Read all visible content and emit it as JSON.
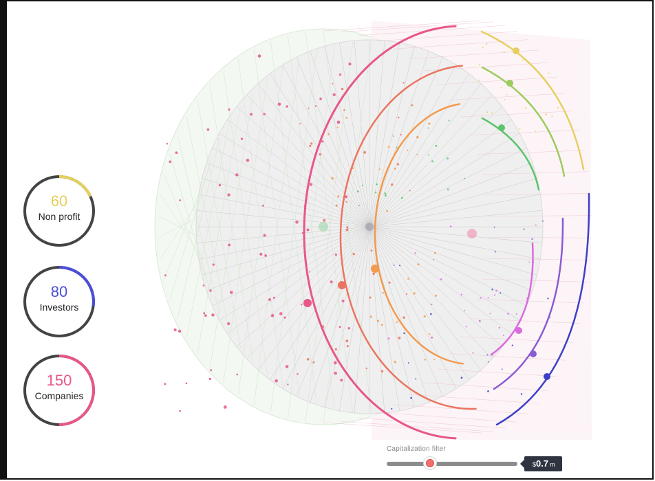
{
  "stats": [
    {
      "id": "nonprofit",
      "value": "60",
      "label": "Non profit",
      "color": "#e3cf5c",
      "fraction": 0.18
    },
    {
      "id": "investors",
      "value": "80",
      "label": "Investors",
      "color": "#4a4ed8",
      "fraction": 0.27
    },
    {
      "id": "companies",
      "value": "150",
      "label": "Companies",
      "color": "#e8568a",
      "fraction": 0.5
    }
  ],
  "slider": {
    "title": "Capitalization filter",
    "currency": "$",
    "value": "0.7",
    "unit": "m",
    "position_fraction": 0.33
  },
  "palette": {
    "companies": "#e8568a",
    "tier2": "#ea7560",
    "tier3": "#f29a4e",
    "nonprofit_yellow": "#e6cf60",
    "nonprofit_lightgreen": "#9ccc5e",
    "nonprofit_green": "#5cc46a",
    "investor_magenta": "#dd6adf",
    "investor_purple": "#8a5bd4",
    "investor_blue": "#3d3fc8",
    "ring_track": "#444444"
  }
}
